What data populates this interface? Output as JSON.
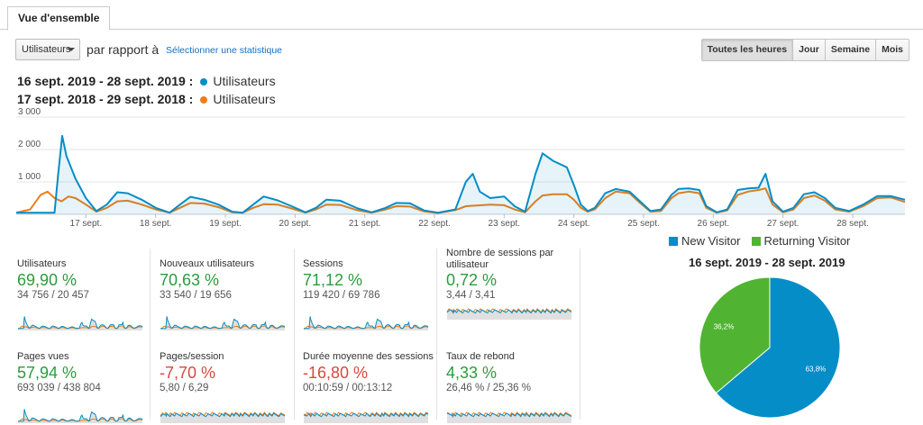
{
  "tab": {
    "label": "Vue d'ensemble"
  },
  "toolbar": {
    "metric_select": "Utilisateurs",
    "compare_text": "par rapport à",
    "select_stat_link": "Sélectionner une statistique",
    "time_buttons": [
      "Toutes les heures",
      "Jour",
      "Semaine",
      "Mois"
    ]
  },
  "date_ranges": [
    {
      "range": "16 sept. 2019 - 28 sept. 2019 :",
      "label": "Utilisateurs",
      "color": "#058dc7"
    },
    {
      "range": "17 sept. 2018 - 29 sept. 2018 :",
      "label": "Utilisateurs",
      "color": "#ed7e17"
    }
  ],
  "metrics": [
    {
      "name": "Utilisateurs",
      "change": "69,90 %",
      "comparison": "34 756 / 20 457",
      "trend": "positive"
    },
    {
      "name": "Nouveaux utilisateurs",
      "change": "70,63 %",
      "comparison": "33 540 / 19 656",
      "trend": "positive"
    },
    {
      "name": "Sessions",
      "change": "71,12 %",
      "comparison": "119 420 / 69 786",
      "trend": "positive"
    },
    {
      "name": "Nombre de sessions par utilisateur",
      "change": "0,72 %",
      "comparison": "3,44 / 3,41",
      "trend": "positive"
    },
    {
      "name": "Pages vues",
      "change": "57,94 %",
      "comparison": "693 039 / 438 804",
      "trend": "positive"
    },
    {
      "name": "Pages/session",
      "change": "-7,70 %",
      "comparison": "5,80 / 6,29",
      "trend": "negative"
    },
    {
      "name": "Durée moyenne des sessions",
      "change": "-16,80 %",
      "comparison": "00:10:59 / 00:13:12",
      "trend": "negative"
    },
    {
      "name": "Taux de rebond",
      "change": "4,33 %",
      "comparison": "26,46 % / 25,36 %",
      "trend": "positive"
    }
  ],
  "pie": {
    "title": "16 sept. 2019 - 28 sept. 2019",
    "legend": [
      {
        "label": "New Visitor",
        "color": "#058dc7"
      },
      {
        "label": "Returning Visitor",
        "color": "#50b432"
      }
    ]
  },
  "chart_data": [
    {
      "type": "line",
      "ylim": [
        0,
        3000
      ],
      "yticks": [
        "3 000",
        "2 000",
        "1 000"
      ],
      "ytick_values": [
        3000,
        2000,
        1000
      ],
      "xtick_labels": [
        "17 sept.",
        "18 sept.",
        "19 sept.",
        "20 sept.",
        "21 sept.",
        "22 sept.",
        "23 sept.",
        "24 sept.",
        "25 sept.",
        "26 sept.",
        "27 sept.",
        "28 sept."
      ],
      "xtick_positions": [
        1,
        2,
        3,
        4,
        5,
        6,
        7,
        8,
        9,
        10,
        11,
        12
      ],
      "x_unit": "days since 16 sept. 2019 00:00",
      "grid": true,
      "series": [
        {
          "name": "16 sept. 2019 - 28 sept. 2019",
          "color": "#058dc7",
          "fill": true,
          "points": [
            [
              0,
              50
            ],
            [
              0.3,
              50
            ],
            [
              0.55,
              50
            ],
            [
              0.6,
              1200
            ],
            [
              0.66,
              2420
            ],
            [
              0.72,
              1800
            ],
            [
              0.85,
              1100
            ],
            [
              1.0,
              500
            ],
            [
              1.15,
              100
            ],
            [
              1.3,
              300
            ],
            [
              1.45,
              680
            ],
            [
              1.6,
              650
            ],
            [
              1.8,
              450
            ],
            [
              2.0,
              200
            ],
            [
              2.2,
              50
            ],
            [
              2.35,
              300
            ],
            [
              2.5,
              540
            ],
            [
              2.7,
              450
            ],
            [
              2.9,
              300
            ],
            [
              3.1,
              80
            ],
            [
              3.25,
              50
            ],
            [
              3.4,
              300
            ],
            [
              3.55,
              550
            ],
            [
              3.75,
              430
            ],
            [
              3.95,
              250
            ],
            [
              4.15,
              60
            ],
            [
              4.3,
              200
            ],
            [
              4.45,
              450
            ],
            [
              4.65,
              420
            ],
            [
              4.9,
              180
            ],
            [
              5.1,
              60
            ],
            [
              5.3,
              200
            ],
            [
              5.45,
              350
            ],
            [
              5.65,
              340
            ],
            [
              5.85,
              120
            ],
            [
              6.05,
              50
            ],
            [
              6.3,
              150
            ],
            [
              6.45,
              1000
            ],
            [
              6.55,
              1250
            ],
            [
              6.65,
              700
            ],
            [
              6.8,
              500
            ],
            [
              7.0,
              550
            ],
            [
              7.15,
              250
            ],
            [
              7.3,
              80
            ],
            [
              7.45,
              1250
            ],
            [
              7.55,
              1880
            ],
            [
              7.7,
              1650
            ],
            [
              7.9,
              1450
            ],
            [
              8.0,
              900
            ],
            [
              8.1,
              300
            ],
            [
              8.2,
              100
            ],
            [
              8.3,
              200
            ],
            [
              8.45,
              650
            ],
            [
              8.6,
              780
            ],
            [
              8.8,
              700
            ],
            [
              8.95,
              400
            ],
            [
              9.1,
              100
            ],
            [
              9.25,
              150
            ],
            [
              9.4,
              600
            ],
            [
              9.5,
              780
            ],
            [
              9.65,
              800
            ],
            [
              9.8,
              750
            ],
            [
              9.9,
              250
            ],
            [
              10.05,
              60
            ],
            [
              10.2,
              150
            ],
            [
              10.35,
              750
            ],
            [
              10.5,
              800
            ],
            [
              10.65,
              820
            ],
            [
              10.75,
              1250
            ],
            [
              10.85,
              400
            ],
            [
              11.0,
              80
            ],
            [
              11.15,
              200
            ],
            [
              11.3,
              620
            ],
            [
              11.45,
              680
            ],
            [
              11.6,
              500
            ],
            [
              11.75,
              200
            ],
            [
              11.95,
              100
            ],
            [
              12.15,
              300
            ],
            [
              12.35,
              560
            ],
            [
              12.55,
              560
            ],
            [
              12.75,
              450
            ]
          ]
        },
        {
          "name": "17 sept. 2018 - 29 sept. 2018",
          "color": "#ed7e17",
          "fill": false,
          "points": [
            [
              0,
              50
            ],
            [
              0.2,
              150
            ],
            [
              0.35,
              600
            ],
            [
              0.45,
              700
            ],
            [
              0.55,
              500
            ],
            [
              0.65,
              400
            ],
            [
              0.75,
              550
            ],
            [
              0.85,
              500
            ],
            [
              1.0,
              300
            ],
            [
              1.15,
              80
            ],
            [
              1.3,
              200
            ],
            [
              1.45,
              400
            ],
            [
              1.6,
              420
            ],
            [
              1.8,
              300
            ],
            [
              2.0,
              150
            ],
            [
              2.2,
              50
            ],
            [
              2.35,
              200
            ],
            [
              2.5,
              350
            ],
            [
              2.7,
              330
            ],
            [
              2.9,
              220
            ],
            [
              3.1,
              60
            ],
            [
              3.25,
              50
            ],
            [
              3.4,
              200
            ],
            [
              3.55,
              310
            ],
            [
              3.75,
              300
            ],
            [
              3.95,
              180
            ],
            [
              4.15,
              50
            ],
            [
              4.3,
              150
            ],
            [
              4.45,
              300
            ],
            [
              4.65,
              290
            ],
            [
              4.9,
              120
            ],
            [
              5.1,
              50
            ],
            [
              5.3,
              150
            ],
            [
              5.45,
              250
            ],
            [
              5.65,
              240
            ],
            [
              5.85,
              90
            ],
            [
              6.05,
              40
            ],
            [
              6.3,
              130
            ],
            [
              6.45,
              250
            ],
            [
              6.6,
              270
            ],
            [
              6.8,
              300
            ],
            [
              7.0,
              280
            ],
            [
              7.15,
              150
            ],
            [
              7.3,
              60
            ],
            [
              7.45,
              400
            ],
            [
              7.55,
              580
            ],
            [
              7.7,
              620
            ],
            [
              7.9,
              620
            ],
            [
              8.0,
              450
            ],
            [
              8.1,
              200
            ],
            [
              8.2,
              80
            ],
            [
              8.3,
              150
            ],
            [
              8.45,
              500
            ],
            [
              8.6,
              700
            ],
            [
              8.8,
              650
            ],
            [
              8.95,
              350
            ],
            [
              9.1,
              80
            ],
            [
              9.25,
              100
            ],
            [
              9.4,
              500
            ],
            [
              9.5,
              650
            ],
            [
              9.65,
              700
            ],
            [
              9.8,
              650
            ],
            [
              9.9,
              200
            ],
            [
              10.05,
              50
            ],
            [
              10.2,
              120
            ],
            [
              10.35,
              600
            ],
            [
              10.5,
              700
            ],
            [
              10.65,
              750
            ],
            [
              10.75,
              800
            ],
            [
              10.85,
              300
            ],
            [
              11.0,
              60
            ],
            [
              11.15,
              150
            ],
            [
              11.3,
              500
            ],
            [
              11.45,
              580
            ],
            [
              11.6,
              420
            ],
            [
              11.75,
              150
            ],
            [
              11.95,
              80
            ],
            [
              12.15,
              250
            ],
            [
              12.35,
              500
            ],
            [
              12.55,
              520
            ],
            [
              12.75,
              380
            ]
          ]
        }
      ]
    },
    {
      "type": "pie",
      "title": "16 sept. 2019 - 28 sept. 2019",
      "slices": [
        {
          "label": "New Visitor",
          "value": 63.8,
          "text": "63,8%",
          "color": "#058dc7"
        },
        {
          "label": "Returning Visitor",
          "value": 36.2,
          "text": "36,2%",
          "color": "#50b432"
        }
      ]
    }
  ]
}
